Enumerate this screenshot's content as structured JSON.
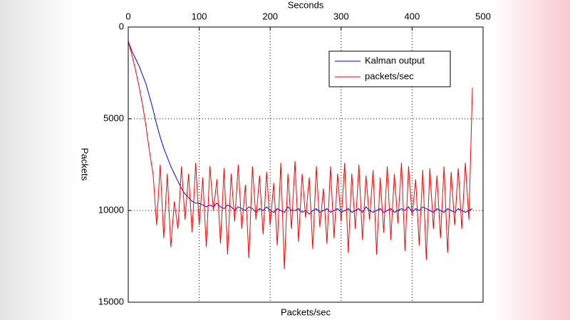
{
  "chart_data": {
    "type": "line",
    "title": "Packets/sec",
    "x_label": "Seconds",
    "y_label": "Packets",
    "x": [
      0,
      5,
      10,
      15,
      20,
      25,
      30,
      35,
      40,
      45,
      50,
      55,
      60,
      65,
      70,
      75,
      80,
      85,
      90,
      95,
      100,
      105,
      110,
      115,
      120,
      125,
      130,
      135,
      140,
      145,
      150,
      155,
      160,
      165,
      170,
      175,
      180,
      185,
      190,
      195,
      200,
      205,
      210,
      215,
      220,
      225,
      230,
      235,
      240,
      245,
      250,
      255,
      260,
      265,
      270,
      275,
      280,
      285,
      290,
      295,
      300,
      305,
      310,
      315,
      320,
      325,
      330,
      335,
      340,
      345,
      350,
      355,
      360,
      365,
      370,
      375,
      380,
      385,
      390,
      395,
      400,
      405,
      410,
      415,
      420,
      425,
      430,
      435,
      440,
      445,
      450,
      455,
      460,
      465,
      470,
      475,
      480,
      485
    ],
    "series": [
      {
        "name": "Kalman output",
        "color": "#0000ff",
        "values": [
          775,
          1300,
          1700,
          2100,
          2600,
          3100,
          3800,
          4500,
          5300,
          6000,
          6600,
          7100,
          7600,
          8000,
          8400,
          8800,
          9100,
          9300,
          9500,
          9600,
          9600,
          9700,
          9800,
          9700,
          9800,
          9600,
          9800,
          9900,
          9700,
          9800,
          10000,
          9800,
          9900,
          10000,
          9800,
          9900,
          10100,
          9900,
          10000,
          9800,
          10000,
          10100,
          9900,
          10000,
          10100,
          9800,
          10000,
          10000,
          9900,
          10100,
          10000,
          10200,
          10000,
          9900,
          10100,
          10000,
          9900,
          10100,
          10000,
          9900,
          10100,
          10000,
          9900,
          10100,
          10000,
          9900,
          10100,
          9800,
          10000,
          10100,
          10000,
          9900,
          10100,
          10000,
          9900,
          10100,
          10000,
          9900,
          10000,
          9800,
          10100,
          9900,
          10000,
          9800,
          9900,
          10000,
          10100,
          9900,
          10000,
          10100,
          9900,
          10000,
          10100,
          9900,
          10000,
          10100,
          10000,
          9900
        ]
      },
      {
        "name": "packets/sec",
        "color": "#ff0000",
        "values": [
          775,
          1500,
          2300,
          3200,
          4200,
          5400,
          6800,
          8000,
          10800,
          7500,
          11500,
          8000,
          12000,
          9500,
          11000,
          7600,
          10500,
          8000,
          11200,
          7400,
          10800,
          8200,
          12000,
          7600,
          10000,
          8300,
          11800,
          7700,
          12400,
          8000,
          10600,
          7500,
          11000,
          8600,
          12600,
          7600,
          10500,
          8100,
          11300,
          7900,
          10800,
          8500,
          11900,
          7400,
          13200,
          8000,
          11000,
          7300,
          11700,
          8000,
          10400,
          8200,
          12100,
          7600,
          10900,
          8800,
          11800,
          7600,
          11500,
          8000,
          10600,
          7400,
          12300,
          8000,
          11000,
          7500,
          11600,
          8100,
          10500,
          7800,
          12400,
          8200,
          11200,
          7600,
          11600,
          8000,
          10700,
          7400,
          12200,
          7600,
          10300,
          8300,
          11900,
          7800,
          12700,
          7700,
          11000,
          8100,
          11500,
          7600,
          12300,
          7900,
          10800,
          7700,
          11000,
          7400,
          10500,
          3300
        ]
      }
    ],
    "xlim": [
      0,
      500
    ],
    "xticks": [
      0,
      100,
      200,
      300,
      400,
      500
    ],
    "ylim": [
      0,
      15000
    ],
    "yticks": [
      0,
      5000,
      10000,
      15000
    ],
    "y_reversed": true,
    "grid": true,
    "legend": "northeast"
  }
}
